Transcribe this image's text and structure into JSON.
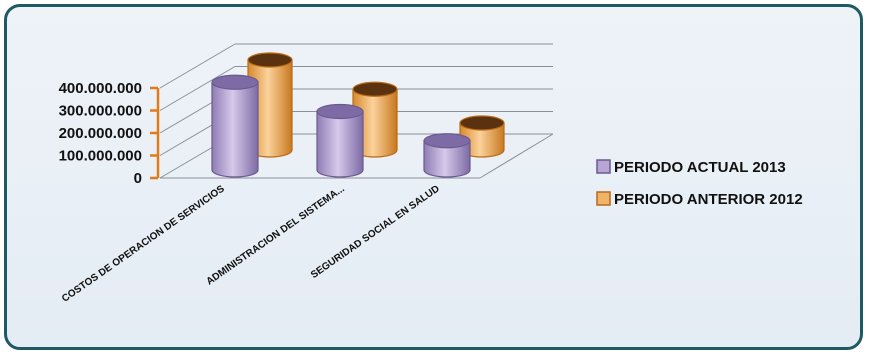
{
  "chart_data": {
    "type": "bar",
    "title": "",
    "xlabel": "",
    "ylabel": "",
    "categories": [
      "COSTOS DE OPERACION DE SERVICIOS",
      "ADMINISTRACION DEL SISTEMA...",
      "SEGURIDAD SOCIAL EN SALUD"
    ],
    "series": [
      {
        "name": "PERIODO ACTUAL  2013",
        "values": [
          390000000,
          260000000,
          130000000
        ],
        "color": "#b7a5d3"
      },
      {
        "name": "PERIODO ANTERIOR 2012",
        "values": [
          400000000,
          270000000,
          120000000
        ],
        "color": "#f0b36a"
      }
    ],
    "yticks": [
      "0",
      "100.000.000",
      "200.000.000",
      "300.000.000",
      "400.000.000"
    ],
    "ylim": [
      0,
      400000000
    ],
    "grid": true,
    "legend_position": "right",
    "style": "3d-cylinder"
  }
}
